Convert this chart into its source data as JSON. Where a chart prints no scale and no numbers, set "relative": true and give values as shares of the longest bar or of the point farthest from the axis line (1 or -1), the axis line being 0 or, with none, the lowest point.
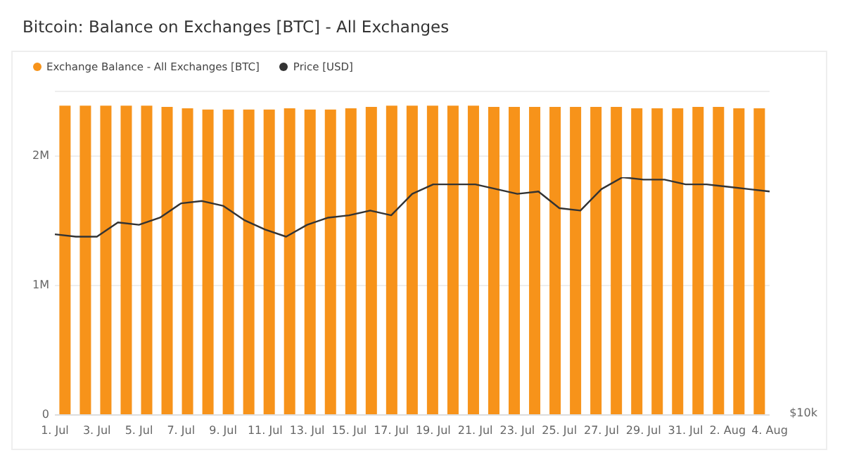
{
  "chart_data": [
    {
      "type": "bar",
      "title": "Bitcoin: Balance on Exchanges [BTC] - All Exchanges",
      "categories": [
        null,
        null,
        null,
        null,
        null,
        null,
        null,
        null,
        null,
        null,
        null,
        null,
        null,
        null,
        null,
        null,
        null,
        null,
        null,
        null,
        null,
        null,
        null,
        null,
        null,
        null,
        null,
        null,
        null,
        null,
        null,
        null,
        null,
        null,
        null
      ],
      "series": [
        {
          "name": "Exchange Balance - All Exchanges [BTC]",
          "color": "#f7931a",
          "values": [
            2390000,
            2390000,
            2390000,
            2390000,
            2390000,
            2380000,
            2370000,
            2360000,
            2360000,
            2360000,
            2360000,
            2370000,
            2360000,
            2360000,
            2370000,
            2380000,
            2390000,
            2390000,
            2390000,
            2390000,
            2390000,
            2380000,
            2380000,
            2380000,
            2380000,
            2380000,
            2380000,
            2380000,
            2370000,
            2370000,
            2370000,
            2380000,
            2380000,
            2370000,
            2370000
          ]
        }
      ],
      "ylim": [
        0,
        2500000
      ],
      "yticks": [
        0,
        {
          "value": 1000000,
          "label": "1M"
        },
        {
          "value": 2000000,
          "label": "2M"
        }
      ],
      "grid": "y",
      "tick_labels": "y",
      "legend": "top left"
    },
    {
      "type": "line",
      "relative": true,
      "categories": [
        "1. Jul",
        null,
        "3. Jul",
        null,
        "5. Jul",
        null,
        "7. Jul",
        null,
        "9. Jul",
        null,
        "11. Jul",
        null,
        "13. Jul",
        null,
        "15. Jul",
        null,
        "17. Jul",
        null,
        "19. Jul",
        null,
        "21. Jul",
        null,
        "23. Jul",
        null,
        "25. Jul",
        null,
        "27. Jul",
        null,
        "29. Jul",
        null,
        "31. Jul",
        null,
        "2. Aug",
        null,
        "4. Aug"
      ],
      "series": [
        {
          "name": "Price [USD]",
          "color": "#333333",
          "values": [
            0.76,
            0.75,
            0.75,
            0.81,
            0.8,
            0.83,
            0.89,
            0.9,
            0.88,
            0.82,
            0.78,
            0.75,
            0.8,
            0.83,
            0.84,
            0.86,
            0.84,
            0.93,
            0.97,
            0.97,
            0.97,
            0.95,
            0.93,
            0.94,
            0.87,
            0.86,
            0.95,
            1,
            0.99,
            0.99,
            0.97,
            0.97,
            0.96,
            0.95,
            0.94
          ]
        }
      ],
      "annotations": [
        "$10k"
      ],
      "legend": "top left",
      "tick_labels": "x",
      "marker": "none"
    }
  ]
}
